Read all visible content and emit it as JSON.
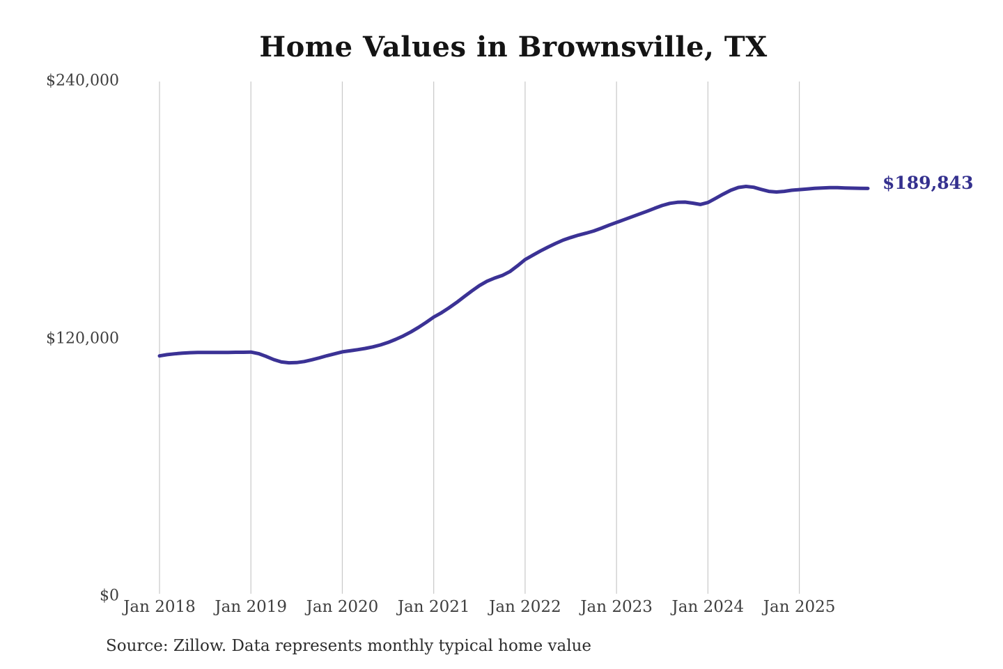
{
  "chart_data": {
    "type": "line",
    "title": "Home Values in Brownsville, TX",
    "source_note": "Source: Zillow. Data represents monthly typical home value",
    "end_label": "$189,843",
    "end_value": 189843,
    "ylim": [
      0,
      240000
    ],
    "grid": "vertical-only",
    "legend": "none",
    "line_color": "#3b3295",
    "end_label_color": "#34308e",
    "gridline_color": "#c8c8c8",
    "y_ticks": [
      {
        "label": "$240,000",
        "value": 240000
      },
      {
        "label": "$120,000",
        "value": 120000
      },
      {
        "label": "$0",
        "value": 0
      }
    ],
    "x_ticks": [
      "Jan 2018",
      "Jan 2019",
      "Jan 2020",
      "Jan 2021",
      "Jan 2022",
      "Jan 2023",
      "Jan 2024",
      "Jan 2025"
    ],
    "series": [
      {
        "name": "Monthly typical home value",
        "start_month": "2018-01",
        "end_month": "2025-10",
        "frequency": "monthly",
        "values": [
          111800,
          112400,
          112800,
          113100,
          113300,
          113400,
          113400,
          113400,
          113400,
          113400,
          113500,
          113500,
          113600,
          112900,
          111600,
          110100,
          109000,
          108600,
          108700,
          109200,
          110000,
          110900,
          111900,
          112800,
          113700,
          114200,
          114700,
          115300,
          116000,
          116900,
          118100,
          119500,
          121100,
          123000,
          125100,
          127400,
          129900,
          131900,
          134200,
          136700,
          139400,
          142100,
          144600,
          146600,
          148100,
          149300,
          151100,
          153800,
          156700,
          158700,
          160700,
          162500,
          164200,
          165800,
          167000,
          168100,
          169000,
          170000,
          171300,
          172700,
          174000,
          175300,
          176600,
          177900,
          179200,
          180600,
          181900,
          182900,
          183400,
          183500,
          183000,
          182400,
          183300,
          185200,
          187200,
          189000,
          190300,
          190800,
          190400,
          189400,
          188500,
          188200,
          188500,
          189000,
          189300,
          189600,
          189900,
          190100,
          190200,
          190200,
          190100,
          190000,
          189900,
          189843
        ]
      }
    ]
  }
}
